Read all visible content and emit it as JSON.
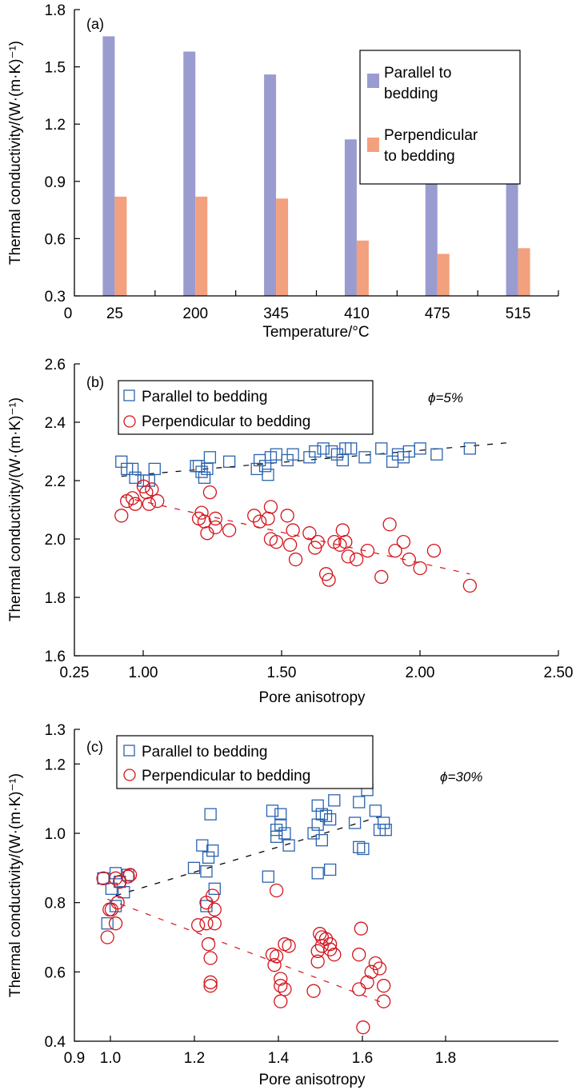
{
  "chart_data": [
    {
      "type": "bar",
      "panel_label": "(a)",
      "title": "",
      "xlabel": "Temperature/°C",
      "ylabel": "Thermal conductivity/(W·(m·K)⁻¹)",
      "origin_x_label": "0",
      "categories": [
        "25",
        "200",
        "345",
        "410",
        "475",
        "515"
      ],
      "ylim": [
        0.3,
        1.8
      ],
      "yticks": [
        "0.3",
        "0.6",
        "0.9",
        "1.2",
        "1.5",
        "1.8"
      ],
      "series": [
        {
          "name": "Parallel to bedding",
          "color": "#9a9cd0",
          "values": [
            1.66,
            1.58,
            1.46,
            1.12,
            1.11,
            1.03
          ]
        },
        {
          "name": "Perpendicular to bedding",
          "color": "#f3a07e",
          "values": [
            0.82,
            0.82,
            0.81,
            0.59,
            0.52,
            0.55
          ]
        }
      ],
      "legend": {
        "placement": "top-right",
        "entries": [
          "Parallel to\nbedding",
          "Perpendicular\nto bedding"
        ]
      }
    },
    {
      "type": "scatter",
      "panel_label": "(b)",
      "annotation": "ϕ=5%",
      "xlabel": "Pore anisotropy",
      "ylabel": "Thermal conductivity/(W·(m·K)⁻¹)",
      "xlim": [
        0.75,
        2.5
      ],
      "xticks": [
        "0.25",
        "1.00",
        "1.50",
        "2.00",
        "2.50"
      ],
      "ylim": [
        1.6,
        2.6
      ],
      "yticks": [
        "1.6",
        "1.8",
        "2.0",
        "2.2",
        "2.4",
        "2.6"
      ],
      "legend": {
        "placement": "top-left",
        "entries": [
          "Parallel to bedding",
          "Perpendicular to bedding"
        ]
      },
      "series": [
        {
          "name": "Parallel to bedding",
          "marker": "square",
          "color": "#2b63ae",
          "trend": {
            "x": [
              0.92,
              2.32
            ],
            "y": [
              2.215,
              2.33
            ],
            "color": "#000000"
          },
          "points": [
            [
              0.92,
              2.265
            ],
            [
              0.94,
              2.24
            ],
            [
              0.96,
              2.24
            ],
            [
              0.97,
              2.21
            ],
            [
              1.0,
              2.2
            ],
            [
              1.02,
              2.2
            ],
            [
              1.04,
              2.24
            ],
            [
              1.19,
              2.25
            ],
            [
              1.2,
              2.25
            ],
            [
              1.21,
              2.23
            ],
            [
              1.22,
              2.21
            ],
            [
              1.23,
              2.24
            ],
            [
              1.24,
              2.28
            ],
            [
              1.31,
              2.265
            ],
            [
              1.41,
              2.24
            ],
            [
              1.42,
              2.27
            ],
            [
              1.44,
              2.25
            ],
            [
              1.45,
              2.22
            ],
            [
              1.46,
              2.28
            ],
            [
              1.48,
              2.29
            ],
            [
              1.52,
              2.27
            ],
            [
              1.54,
              2.29
            ],
            [
              1.6,
              2.28
            ],
            [
              1.62,
              2.3
            ],
            [
              1.65,
              2.31
            ],
            [
              1.68,
              2.3
            ],
            [
              1.7,
              2.29
            ],
            [
              1.72,
              2.27
            ],
            [
              1.73,
              2.31
            ],
            [
              1.75,
              2.31
            ],
            [
              1.8,
              2.28
            ],
            [
              1.86,
              2.31
            ],
            [
              1.9,
              2.265
            ],
            [
              1.92,
              2.29
            ],
            [
              1.94,
              2.28
            ],
            [
              1.96,
              2.3
            ],
            [
              2.0,
              2.31
            ],
            [
              2.06,
              2.29
            ],
            [
              2.18,
              2.31
            ]
          ]
        },
        {
          "name": "Perpendicular to bedding",
          "marker": "circle",
          "color": "#d4141c",
          "trend": {
            "x": [
              0.92,
              2.18
            ],
            "y": [
              2.145,
              1.88
            ],
            "color": "#d4141c"
          },
          "points": [
            [
              0.92,
              2.08
            ],
            [
              0.94,
              2.13
            ],
            [
              0.96,
              2.14
            ],
            [
              0.97,
              2.12
            ],
            [
              1.0,
              2.18
            ],
            [
              1.01,
              2.16
            ],
            [
              1.02,
              2.12
            ],
            [
              1.03,
              2.17
            ],
            [
              1.05,
              2.13
            ],
            [
              1.2,
              2.07
            ],
            [
              1.21,
              2.09
            ],
            [
              1.22,
              2.06
            ],
            [
              1.23,
              2.02
            ],
            [
              1.24,
              2.16
            ],
            [
              1.26,
              2.07
            ],
            [
              1.26,
              2.04
            ],
            [
              1.31,
              2.03
            ],
            [
              1.4,
              2.08
            ],
            [
              1.42,
              2.06
            ],
            [
              1.45,
              2.07
            ],
            [
              1.46,
              2.11
            ],
            [
              1.46,
              2.0
            ],
            [
              1.48,
              1.99
            ],
            [
              1.52,
              2.08
            ],
            [
              1.53,
              1.98
            ],
            [
              1.54,
              2.03
            ],
            [
              1.55,
              1.93
            ],
            [
              1.6,
              2.02
            ],
            [
              1.62,
              1.97
            ],
            [
              1.63,
              1.99
            ],
            [
              1.66,
              1.88
            ],
            [
              1.67,
              1.86
            ],
            [
              1.69,
              1.99
            ],
            [
              1.71,
              1.98
            ],
            [
              1.72,
              2.03
            ],
            [
              1.73,
              1.99
            ],
            [
              1.74,
              1.94
            ],
            [
              1.77,
              1.93
            ],
            [
              1.81,
              1.96
            ],
            [
              1.86,
              1.87
            ],
            [
              1.89,
              2.05
            ],
            [
              1.91,
              1.96
            ],
            [
              1.94,
              1.99
            ],
            [
              1.96,
              1.93
            ],
            [
              2.0,
              1.9
            ],
            [
              2.05,
              1.96
            ],
            [
              2.18,
              1.84
            ]
          ]
        }
      ]
    },
    {
      "type": "scatter",
      "panel_label": "(c)",
      "annotation": "ϕ=30%",
      "xlabel": "Pore anisotropy",
      "ylabel": "Thermal conductivity/(W·(m·K)⁻¹)",
      "xlim": [
        0.9,
        1.8
      ],
      "xticks": [
        "0.9",
        "1.0",
        "1.2",
        "1.4",
        "1.6",
        "1.8"
      ],
      "ylim": [
        0.4,
        1.3
      ],
      "yticks": [
        "0.4",
        "0.6",
        "0.8",
        "1.0",
        "1.2",
        "1.3"
      ],
      "legend": {
        "placement": "top-left",
        "entries": [
          "Parallel to bedding",
          "Perpendicular to bedding"
        ]
      },
      "series": [
        {
          "name": "Parallel to bedding",
          "marker": "square",
          "color": "#2b63ae",
          "trend": {
            "x": [
              1.0,
              1.66
            ],
            "y": [
              0.82,
              1.055
            ],
            "color": "#000000"
          },
          "points": [
            [
              0.97,
              0.87
            ],
            [
              0.98,
              0.74
            ],
            [
              0.99,
              0.84
            ],
            [
              1.0,
              0.885
            ],
            [
              1.0,
              0.79
            ],
            [
              1.01,
              0.86
            ],
            [
              1.02,
              0.83
            ],
            [
              1.03,
              0.88
            ],
            [
              1.19,
              0.9
            ],
            [
              1.21,
              0.965
            ],
            [
              1.22,
              0.89
            ],
            [
              1.22,
              0.79
            ],
            [
              1.225,
              0.93
            ],
            [
              1.23,
              1.055
            ],
            [
              1.235,
              0.95
            ],
            [
              1.24,
              0.84
            ],
            [
              1.37,
              0.875
            ],
            [
              1.38,
              1.065
            ],
            [
              1.39,
              1.01
            ],
            [
              1.39,
              0.99
            ],
            [
              1.4,
              1.055
            ],
            [
              1.4,
              1.025
            ],
            [
              1.41,
              1.0
            ],
            [
              1.42,
              0.965
            ],
            [
              1.48,
              1.0
            ],
            [
              1.49,
              1.08
            ],
            [
              1.49,
              0.885
            ],
            [
              1.49,
              1.025
            ],
            [
              1.5,
              0.98
            ],
            [
              1.5,
              1.055
            ],
            [
              1.51,
              1.05
            ],
            [
              1.52,
              1.04
            ],
            [
              1.52,
              0.895
            ],
            [
              1.53,
              1.095
            ],
            [
              1.58,
              1.03
            ],
            [
              1.59,
              1.09
            ],
            [
              1.59,
              0.96
            ],
            [
              1.6,
              0.955
            ],
            [
              1.61,
              1.125
            ],
            [
              1.63,
              1.065
            ],
            [
              1.64,
              1.01
            ],
            [
              1.65,
              1.03
            ],
            [
              1.655,
              1.01
            ]
          ]
        },
        {
          "name": "Perpendicular to bedding",
          "marker": "circle",
          "color": "#d4141c",
          "trend": {
            "x": [
              0.98,
              1.65
            ],
            "y": [
              0.81,
              0.51
            ],
            "color": "#d4141c"
          },
          "points": [
            [
              0.97,
              0.87
            ],
            [
              0.98,
              0.7
            ],
            [
              0.985,
              0.78
            ],
            [
              0.99,
              0.78
            ],
            [
              1.0,
              0.74
            ],
            [
              1.0,
              0.87
            ],
            [
              1.005,
              0.8
            ],
            [
              1.01,
              0.86
            ],
            [
              1.03,
              0.875
            ],
            [
              1.035,
              0.88
            ],
            [
              1.2,
              0.735
            ],
            [
              1.22,
              0.8
            ],
            [
              1.22,
              0.74
            ],
            [
              1.225,
              0.68
            ],
            [
              1.23,
              0.64
            ],
            [
              1.23,
              0.57
            ],
            [
              1.23,
              0.56
            ],
            [
              1.235,
              0.82
            ],
            [
              1.24,
              0.78
            ],
            [
              1.24,
              0.74
            ],
            [
              1.38,
              0.65
            ],
            [
              1.385,
              0.62
            ],
            [
              1.39,
              0.835
            ],
            [
              1.39,
              0.645
            ],
            [
              1.4,
              0.58
            ],
            [
              1.4,
              0.56
            ],
            [
              1.4,
              0.515
            ],
            [
              1.41,
              0.55
            ],
            [
              1.41,
              0.68
            ],
            [
              1.42,
              0.675
            ],
            [
              1.48,
              0.545
            ],
            [
              1.49,
              0.63
            ],
            [
              1.49,
              0.66
            ],
            [
              1.495,
              0.71
            ],
            [
              1.5,
              0.7
            ],
            [
              1.5,
              0.675
            ],
            [
              1.51,
              0.695
            ],
            [
              1.52,
              0.68
            ],
            [
              1.52,
              0.665
            ],
            [
              1.53,
              0.65
            ],
            [
              1.59,
              0.65
            ],
            [
              1.59,
              0.55
            ],
            [
              1.595,
              0.725
            ],
            [
              1.6,
              0.44
            ],
            [
              1.61,
              0.57
            ],
            [
              1.62,
              0.6
            ],
            [
              1.63,
              0.625
            ],
            [
              1.64,
              0.61
            ],
            [
              1.65,
              0.56
            ],
            [
              1.65,
              0.515
            ]
          ]
        }
      ]
    }
  ]
}
